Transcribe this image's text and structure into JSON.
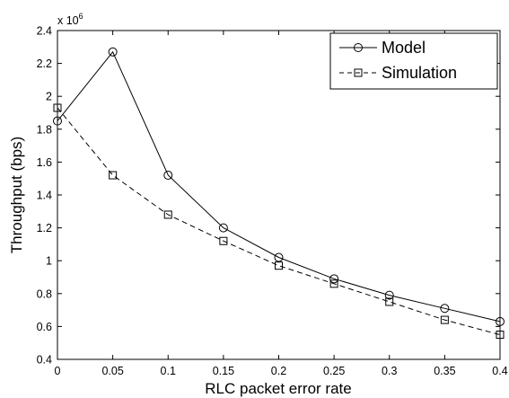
{
  "chart_data": {
    "type": "line",
    "xlabel": "RLC packet error rate",
    "ylabel": "Throughput (bps)",
    "y_multiplier_base": "x 10",
    "y_multiplier_exp": "6",
    "xlim": [
      0,
      0.4
    ],
    "ylim": [
      0.4,
      2.4
    ],
    "x_ticks": [
      0,
      0.05,
      0.1,
      0.15,
      0.2,
      0.25,
      0.3,
      0.35,
      0.4
    ],
    "x_tick_labels": [
      "0",
      "0.05",
      "0.1",
      "0.15",
      "0.2",
      "0.25",
      "0.3",
      "0.35",
      "0.4"
    ],
    "y_ticks": [
      0.4,
      0.6,
      0.8,
      1.0,
      1.2,
      1.4,
      1.6,
      1.8,
      2.0,
      2.2,
      2.4
    ],
    "y_tick_labels": [
      "0.4",
      "0.6",
      "0.8",
      "1",
      "1.2",
      "1.4",
      "1.6",
      "1.8",
      "2",
      "2.2",
      "2.4"
    ],
    "grid": false,
    "legend_position": "top-right",
    "x": [
      0,
      0.05,
      0.1,
      0.15,
      0.2,
      0.25,
      0.3,
      0.35,
      0.4
    ],
    "series": [
      {
        "name": "Model",
        "line_style": "solid",
        "marker": "circle",
        "color": "#000000",
        "values": [
          1.85,
          2.27,
          1.52,
          1.2,
          1.02,
          0.89,
          0.79,
          0.71,
          0.63
        ]
      },
      {
        "name": "Simulation",
        "line_style": "dashed",
        "marker": "square",
        "color": "#000000",
        "values": [
          1.93,
          1.52,
          1.28,
          1.12,
          0.97,
          0.86,
          0.75,
          0.64,
          0.55
        ]
      }
    ]
  }
}
